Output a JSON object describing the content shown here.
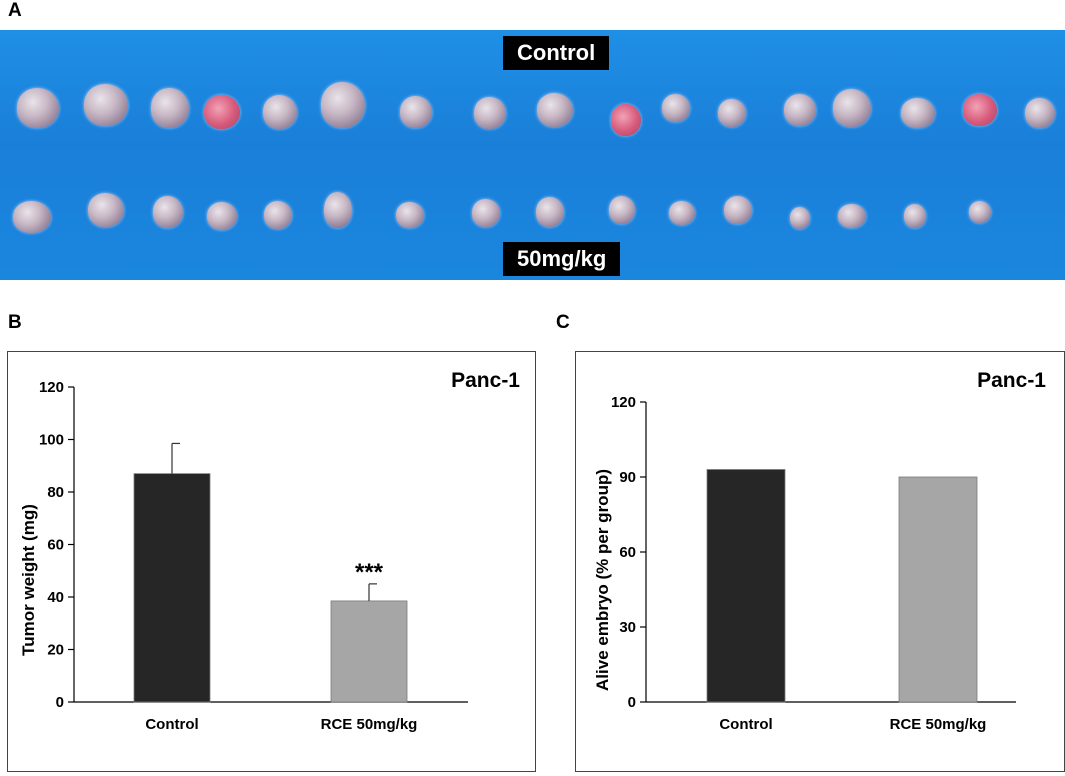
{
  "panels": {
    "a_letter": "A",
    "b_letter": "B",
    "c_letter": "C"
  },
  "photo": {
    "top_label": "Control",
    "bottom_label": "50mg/kg",
    "background_color": "#1a82dc"
  },
  "chart_data": [
    {
      "id": "chart-b",
      "type": "bar",
      "title": "Panc-1",
      "xlabel": "",
      "ylabel": "Tumor weight (mg)",
      "categories": [
        "Control",
        "RCE 50mg/kg"
      ],
      "values": [
        87,
        38.5
      ],
      "errors": [
        11.5,
        6.5
      ],
      "colors": [
        "#262626",
        "#a6a6a6"
      ],
      "annotations": [
        "",
        "***"
      ],
      "ylim": [
        0,
        120
      ],
      "yticks": [
        0,
        20,
        40,
        60,
        80,
        100,
        120
      ],
      "grid": false
    },
    {
      "id": "chart-c",
      "type": "bar",
      "title": "Panc-1",
      "xlabel": "",
      "ylabel": "Alive embryo (% per group)",
      "categories": [
        "Control",
        "RCE 50mg/kg"
      ],
      "values": [
        93,
        90
      ],
      "colors": [
        "#262626",
        "#a6a6a6"
      ],
      "ylim": [
        0,
        120
      ],
      "yticks": [
        0,
        30,
        60,
        90,
        120
      ],
      "grid": false
    }
  ]
}
